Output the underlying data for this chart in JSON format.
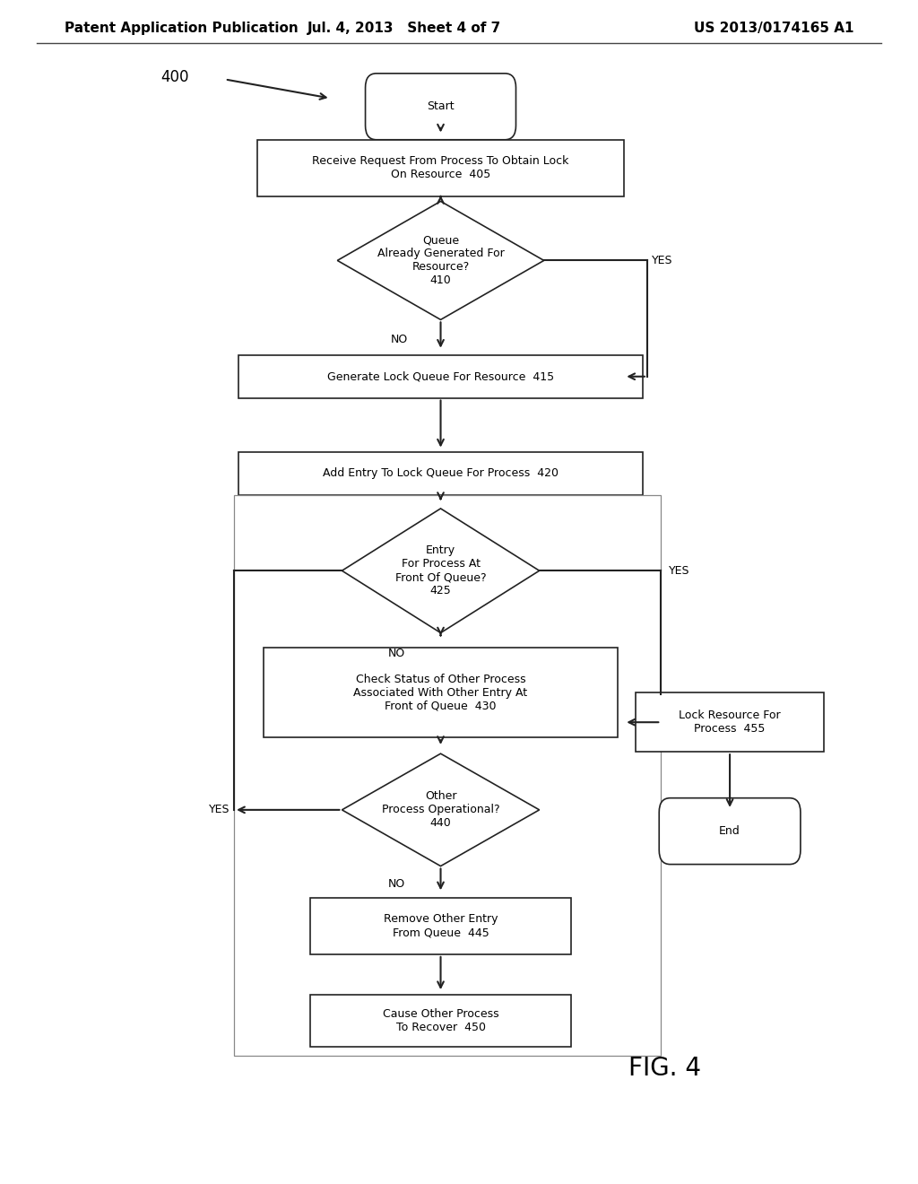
{
  "bg_color": "#ffffff",
  "header_left": "Patent Application Publication",
  "header_mid": "Jul. 4, 2013   Sheet 4 of 7",
  "header_right": "US 2013/0174165 A1",
  "fig_label": "400",
  "fig_caption": "FIG. 4",
  "line_color": "#222222",
  "text_color": "#000000",
  "font_size": 9,
  "header_font_size": 11
}
